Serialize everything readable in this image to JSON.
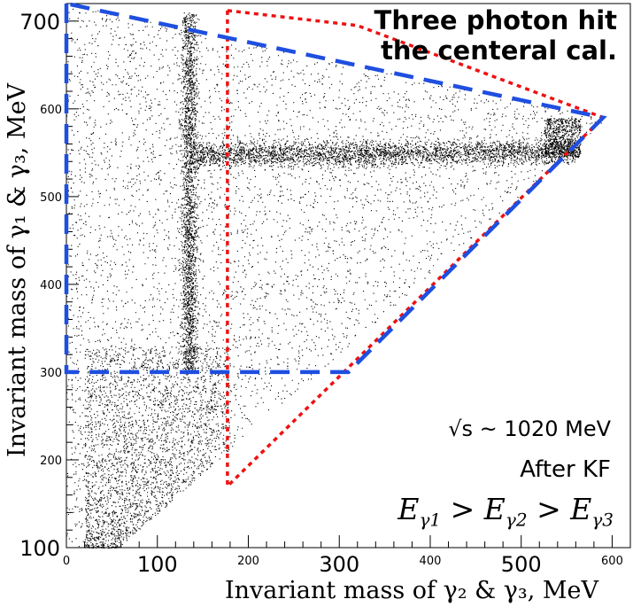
{
  "chart_data": {
    "type": "scatter",
    "title_lines": [
      "Three photon hit",
      "the centeral cal."
    ],
    "xlabel": "Invariant mass of γ₂ & γ₃,  MeV",
    "ylabel": "Invariant mass of γ₁ & γ₃,  MeV",
    "xlim": [
      0,
      620
    ],
    "ylim": [
      100,
      720
    ],
    "x_ticks": [
      0,
      100,
      200,
      300,
      400,
      500,
      600
    ],
    "x_tick_labels": [
      "0",
      "100",
      "200",
      "300",
      "400",
      "500",
      "600"
    ],
    "y_ticks": [
      100,
      200,
      300,
      400,
      500,
      600,
      700
    ],
    "y_tick_labels": [
      "100",
      "200",
      "300",
      "400",
      "500",
      "600",
      "700"
    ],
    "annotations": {
      "sqrt_s": "√s ~ 1020 MeV",
      "after_kf": "After KF",
      "energy_order": "E > E > E",
      "energy_subscripts": [
        "γ1",
        "γ2",
        "γ3"
      ]
    },
    "bands": [
      {
        "name": "vertical_pi0_band",
        "x": 135,
        "y_range": [
          300,
          710
        ]
      },
      {
        "name": "horizontal_eta_band",
        "y": 550,
        "x_range": [
          140,
          560
        ]
      }
    ],
    "cut_lines": {
      "blue_dashed": [
        [
          0,
          720
        ],
        [
          0,
          300
        ],
        [
          310,
          300
        ],
        [
          590,
          590
        ],
        [
          0,
          720
        ]
      ],
      "red_dotted": [
        [
          177,
          712
        ],
        [
          177,
          170
        ],
        [
          590,
          590
        ],
        [
          320,
          695
        ],
        [
          177,
          712
        ]
      ]
    },
    "colors": {
      "blue_cut": "#1f4fe0",
      "red_cut": "#ee1111",
      "points": "#000000"
    }
  }
}
